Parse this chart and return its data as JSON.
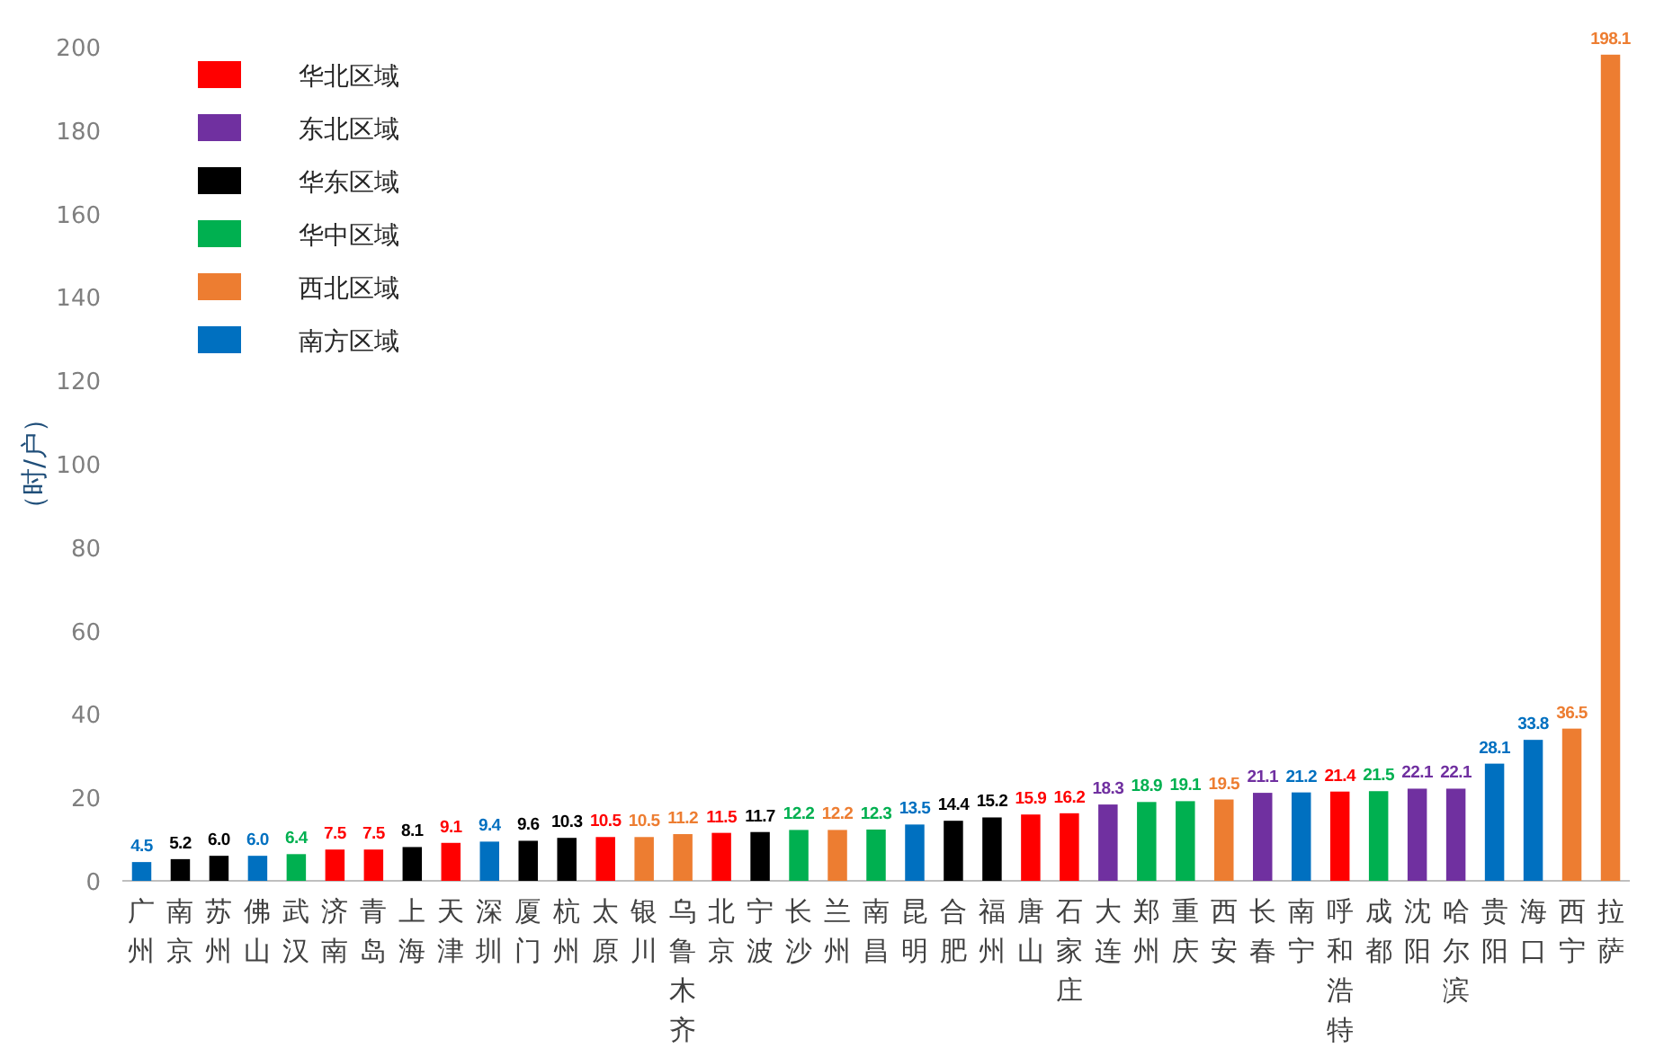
{
  "chart_data": {
    "type": "bar",
    "ylabel": "（时/户）",
    "ylim": [
      0,
      200
    ],
    "yticks": [
      0,
      20,
      40,
      60,
      80,
      100,
      120,
      140,
      160,
      180,
      200
    ],
    "legend": "top left",
    "grid": false,
    "categories": [
      "广州",
      "南京",
      "苏州",
      "佛山",
      "武汉",
      "济南",
      "青岛",
      "上海",
      "天津",
      "深圳",
      "厦门",
      "杭州",
      "太原",
      "银川",
      "乌鲁木齐",
      "北京",
      "宁波",
      "长沙",
      "兰州",
      "南昌",
      "昆明",
      "合肥",
      "福州",
      "唐山",
      "石家庄",
      "大连",
      "郑州",
      "重庆",
      "西安",
      "长春",
      "南宁",
      "呼和浩特",
      "成都",
      "沈阳",
      "哈尔滨",
      "贵阳",
      "海口",
      "西宁",
      "拉萨"
    ],
    "series": [
      {
        "name": "华北区域",
        "color": "#ff0000",
        "values": [
          null,
          null,
          null,
          null,
          null,
          7.5,
          7.5,
          null,
          9.1,
          null,
          null,
          null,
          10.5,
          null,
          null,
          11.5,
          null,
          null,
          null,
          null,
          null,
          null,
          null,
          15.9,
          16.2,
          null,
          null,
          null,
          null,
          null,
          null,
          21.4,
          null,
          null,
          null,
          null,
          null,
          null,
          null
        ],
        "value_labels": [
          null,
          null,
          null,
          null,
          null,
          "7.5",
          "7.5",
          null,
          "9.1",
          null,
          null,
          null,
          "10.5",
          null,
          null,
          "11.5",
          null,
          null,
          null,
          null,
          null,
          null,
          null,
          "15.9",
          "16.2",
          null,
          null,
          null,
          null,
          null,
          null,
          "21.4",
          null,
          null,
          null,
          null,
          null,
          null,
          null
        ]
      },
      {
        "name": "东北区域",
        "color": "#7030a0",
        "values": [
          null,
          null,
          null,
          null,
          null,
          null,
          null,
          null,
          null,
          null,
          null,
          null,
          null,
          null,
          null,
          null,
          null,
          null,
          null,
          null,
          null,
          null,
          null,
          null,
          null,
          18.3,
          null,
          null,
          null,
          21.1,
          null,
          null,
          null,
          22.1,
          22.1,
          null,
          null,
          null,
          null
        ],
        "value_labels": [
          null,
          null,
          null,
          null,
          null,
          null,
          null,
          null,
          null,
          null,
          null,
          null,
          null,
          null,
          null,
          null,
          null,
          null,
          null,
          null,
          null,
          null,
          null,
          null,
          null,
          "18.3",
          null,
          null,
          null,
          "21.1",
          null,
          null,
          null,
          "22.1",
          "22.1",
          null,
          null,
          null,
          null
        ]
      },
      {
        "name": "华东区域",
        "color": "#000000",
        "values": [
          null,
          5.2,
          6.0,
          null,
          null,
          null,
          null,
          8.1,
          null,
          null,
          9.6,
          10.3,
          null,
          null,
          null,
          null,
          11.7,
          null,
          null,
          null,
          null,
          14.4,
          15.2,
          null,
          null,
          null,
          null,
          null,
          null,
          null,
          null,
          null,
          null,
          null,
          null,
          null,
          null,
          null,
          null
        ],
        "value_labels": [
          null,
          "5.2",
          "6.0",
          null,
          null,
          null,
          null,
          "8.1",
          null,
          null,
          "9.6",
          "10.3",
          null,
          null,
          null,
          null,
          "11.7",
          null,
          null,
          null,
          null,
          "14.4",
          "15.2",
          null,
          null,
          null,
          null,
          null,
          null,
          null,
          null,
          null,
          null,
          null,
          null,
          null,
          null,
          null,
          null
        ]
      },
      {
        "name": "华中区域",
        "color": "#00b050",
        "values": [
          null,
          null,
          null,
          null,
          6.4,
          null,
          null,
          null,
          null,
          null,
          null,
          null,
          null,
          null,
          null,
          null,
          null,
          12.2,
          null,
          12.3,
          null,
          null,
          null,
          null,
          null,
          null,
          18.9,
          19.1,
          null,
          null,
          null,
          null,
          21.5,
          null,
          null,
          null,
          null,
          null,
          null
        ],
        "value_labels": [
          null,
          null,
          null,
          null,
          "6.4",
          null,
          null,
          null,
          null,
          null,
          null,
          null,
          null,
          null,
          null,
          null,
          null,
          "12.2",
          null,
          "12.3",
          null,
          null,
          null,
          null,
          null,
          null,
          "18.9",
          "19.1",
          null,
          null,
          null,
          null,
          "21.5",
          null,
          null,
          null,
          null,
          null,
          null
        ]
      },
      {
        "name": "西北区域",
        "color": "#ed7d31",
        "values": [
          null,
          null,
          null,
          null,
          null,
          null,
          null,
          null,
          null,
          null,
          null,
          null,
          null,
          10.5,
          11.2,
          null,
          null,
          null,
          12.2,
          null,
          null,
          null,
          null,
          null,
          null,
          null,
          null,
          null,
          19.5,
          null,
          null,
          null,
          null,
          null,
          null,
          null,
          null,
          36.5,
          198.1
        ],
        "value_labels": [
          null,
          null,
          null,
          null,
          null,
          null,
          null,
          null,
          null,
          null,
          null,
          null,
          null,
          "10.5",
          "11.2",
          null,
          null,
          null,
          "12.2",
          null,
          null,
          null,
          null,
          null,
          null,
          null,
          null,
          null,
          "19.5",
          null,
          null,
          null,
          null,
          null,
          null,
          null,
          null,
          "36.5",
          "198.1"
        ]
      },
      {
        "name": "南方区域",
        "color": "#0070c0",
        "values": [
          4.5,
          null,
          null,
          6.0,
          null,
          null,
          null,
          null,
          null,
          9.4,
          null,
          null,
          null,
          null,
          null,
          null,
          null,
          null,
          null,
          null,
          13.5,
          null,
          null,
          null,
          null,
          null,
          null,
          null,
          null,
          null,
          21.2,
          null,
          null,
          null,
          null,
          28.1,
          33.8,
          null,
          null
        ],
        "value_labels": [
          "4.5",
          null,
          null,
          "6.0",
          null,
          null,
          null,
          null,
          null,
          "9.4",
          null,
          null,
          null,
          null,
          null,
          null,
          null,
          null,
          null,
          null,
          "13.5",
          null,
          null,
          null,
          null,
          null,
          null,
          null,
          null,
          null,
          "21.2",
          null,
          null,
          null,
          null,
          "28.1",
          "33.8",
          null,
          null
        ]
      }
    ]
  }
}
